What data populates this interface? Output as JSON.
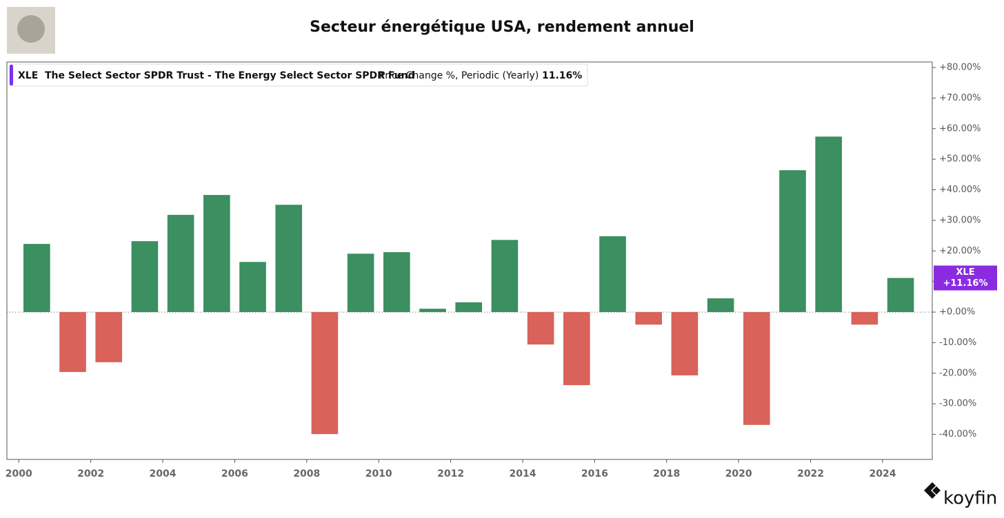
{
  "chart_data": {
    "type": "bar",
    "title": "Secteur énergétique USA, rendement annuel",
    "legend": {
      "ticker": "XLE",
      "name": "The Select Sector SPDR Trust - The Energy Select Sector SPDR Fund",
      "metric": "Price Change %, Periodic (Yearly)",
      "value": "11.16%"
    },
    "last_value_tag": {
      "ticker": "XLE",
      "label": "+11.16%"
    },
    "brand": "koyfin",
    "x": [
      2000,
      2001,
      2002,
      2003,
      2004,
      2005,
      2006,
      2007,
      2008,
      2009,
      2010,
      2011,
      2012,
      2013,
      2014,
      2015,
      2016,
      2017,
      2018,
      2019,
      2020,
      2021,
      2022,
      2023,
      2024
    ],
    "values": [
      22.3,
      -19.6,
      -16.4,
      23.2,
      31.8,
      38.3,
      16.4,
      35.1,
      -39.9,
      19.1,
      19.6,
      1.1,
      3.2,
      23.6,
      -10.6,
      -23.9,
      24.8,
      -4.1,
      -20.7,
      4.5,
      -36.9,
      46.4,
      57.4,
      -4.1,
      11.16
    ],
    "positive_color": "#3b8f60",
    "negative_color": "#d9625b",
    "tag_color": "#8a2be2",
    "xlim": [
      1999.67,
      2025.38
    ],
    "xticks": [
      2000,
      2002,
      2004,
      2006,
      2008,
      2010,
      2012,
      2014,
      2016,
      2018,
      2020,
      2022,
      2024
    ],
    "ylim": [
      -48.2,
      81.8
    ],
    "yticks": [
      {
        "value": 80,
        "label": "+80.00%"
      },
      {
        "value": 70,
        "label": "+70.00%"
      },
      {
        "value": 60,
        "label": "+60.00%"
      },
      {
        "value": 50,
        "label": "+50.00%"
      },
      {
        "value": 40,
        "label": "+40.00%"
      },
      {
        "value": 30,
        "label": "+30.00%"
      },
      {
        "value": 20,
        "label": "+20.00%"
      },
      {
        "value": 10,
        "label": "+10.00%"
      },
      {
        "value": 0,
        "label": "+0.00%"
      },
      {
        "value": -10,
        "label": "-10.00%"
      },
      {
        "value": -20,
        "label": "-20.00%"
      },
      {
        "value": -30,
        "label": "-30.00%"
      },
      {
        "value": -40,
        "label": "-40.00%"
      }
    ],
    "grid": false
  }
}
